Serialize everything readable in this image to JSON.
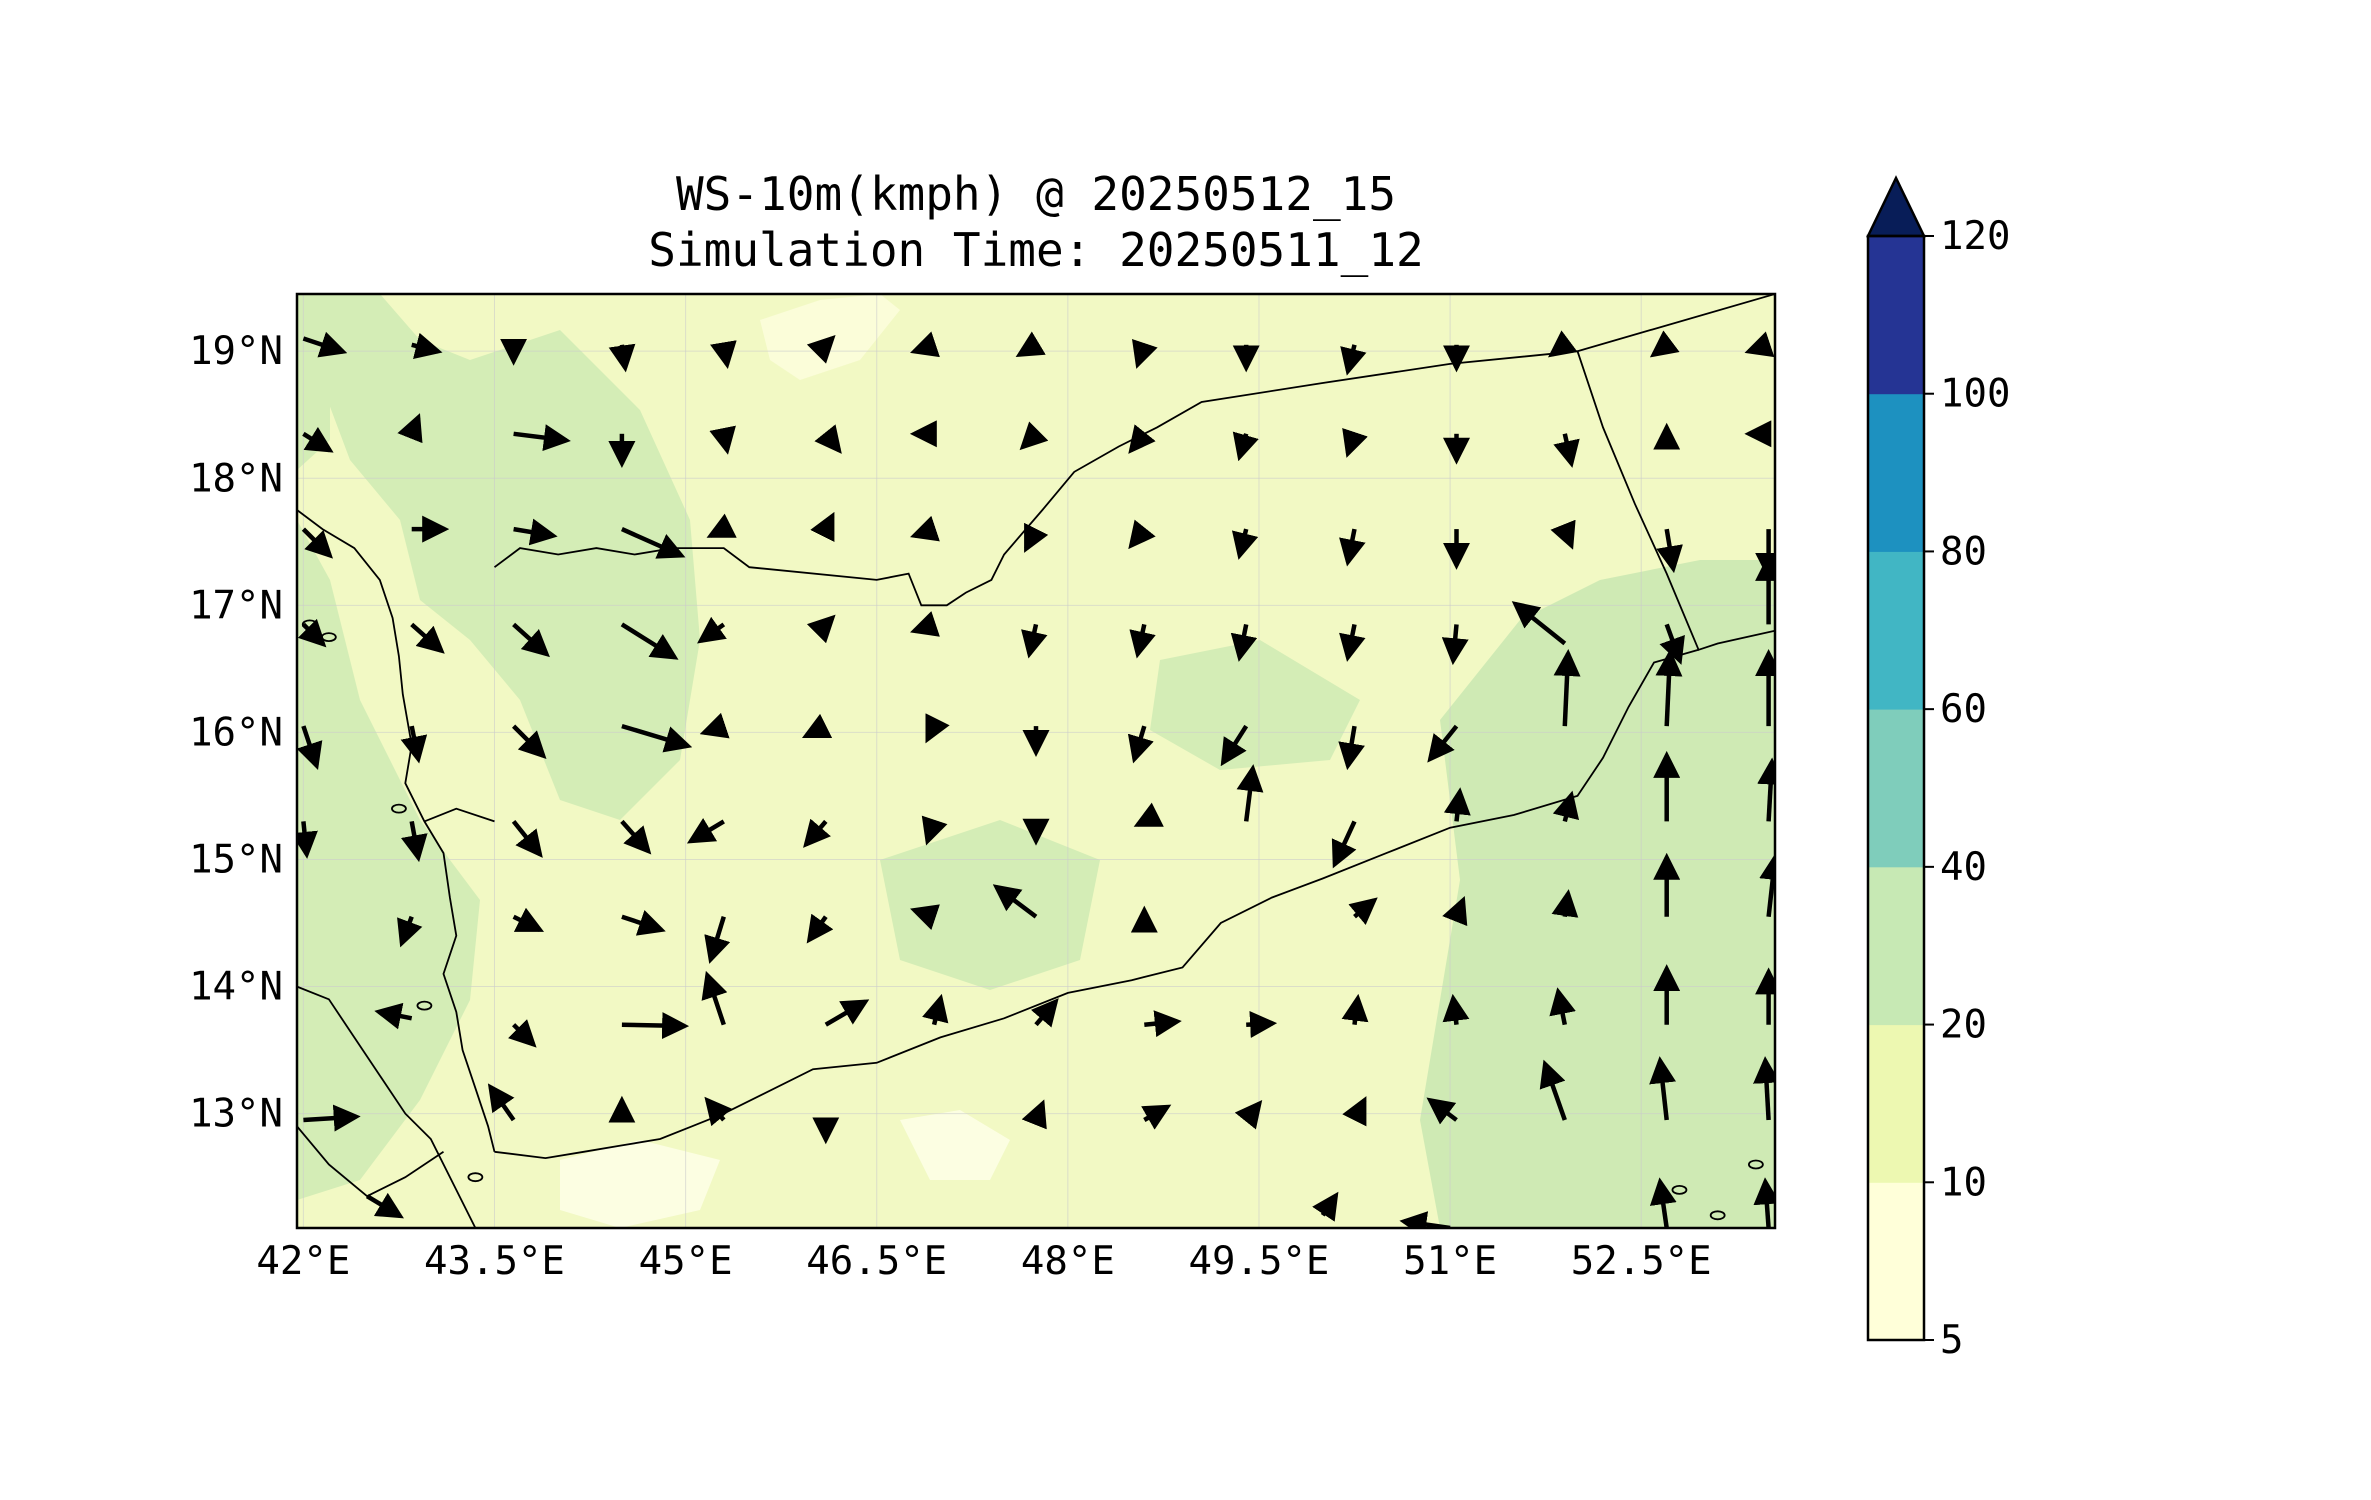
{
  "title": {
    "line1": "WS-10m(kmph) @ 20250512_15",
    "line2": "Simulation Time: 20250511_12"
  },
  "map": {
    "lon_range": [
      41.95,
      53.55
    ],
    "lat_range": [
      12.1,
      19.45
    ],
    "lon_ticks": [
      "42°E",
      "43.5°E",
      "45°E",
      "46.5°E",
      "48°E",
      "49.5°E",
      "51°E",
      "52.5°E"
    ],
    "lat_ticks": [
      "19°N",
      "18°N",
      "17°N",
      "16°N",
      "15°N",
      "14°N",
      "13°N"
    ],
    "gridlines": true,
    "background_color": "#f2f9c4",
    "coast_color": "#000000",
    "arrow_color": "#000000"
  },
  "colorbar": {
    "levels": [
      "5",
      "10",
      "20",
      "40",
      "60",
      "80",
      "100",
      "120"
    ],
    "colors": [
      "#ffffd9",
      "#edf8b1",
      "#c7e9b4",
      "#7fcdbb",
      "#41b6c4",
      "#1d91c0",
      "#253494"
    ],
    "extend_color": "#081d58",
    "extend": "max",
    "label_position": "right"
  }
}
